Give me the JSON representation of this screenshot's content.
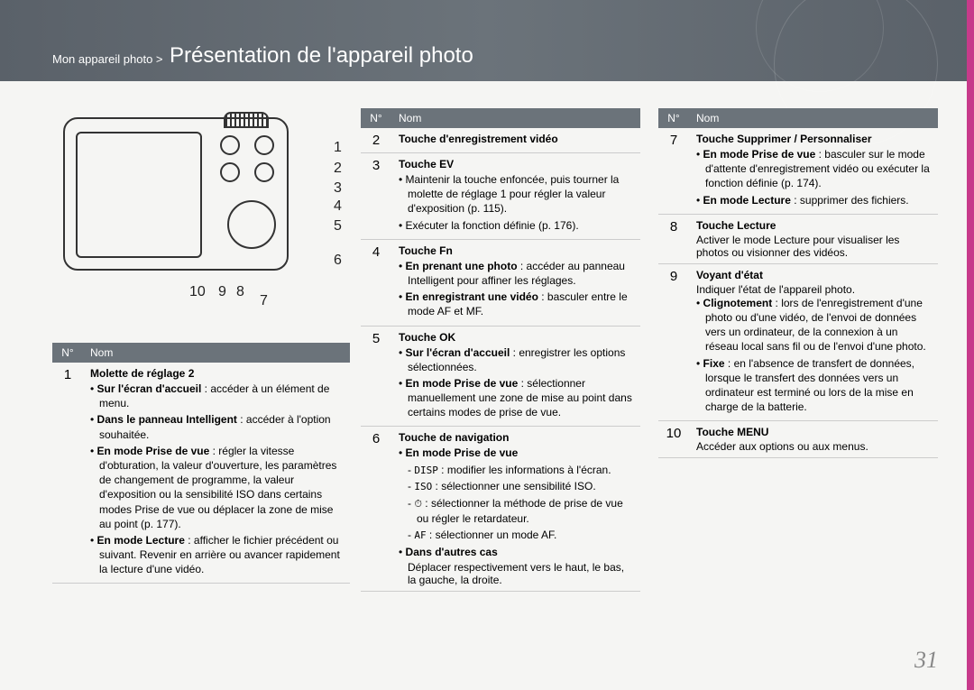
{
  "breadcrumb": "Mon appareil photo >",
  "title": "Présentation de l'appareil photo",
  "page_number": "31",
  "callouts": [
    "1",
    "2",
    "3",
    "4",
    "5",
    "6",
    "7",
    "8",
    "9",
    "10"
  ],
  "table_headers": {
    "num": "N°",
    "name": "Nom"
  },
  "col1": [
    {
      "num": "1",
      "title": "Molette de réglage 2",
      "items": [
        {
          "b": "Sur l'écran d'accueil",
          "t": " : accéder à un élément de menu."
        },
        {
          "b": "Dans le panneau Intelligent",
          "t": " : accéder à l'option souhaitée."
        },
        {
          "b": "En mode Prise de vue",
          "t": " : régler la vitesse d'obturation, la valeur d'ouverture, les paramètres de changement de programme, la valeur d'exposition ou la sensibilité ISO dans certains modes Prise de vue ou déplacer la zone de mise au point (p. 177)."
        },
        {
          "b": "En mode Lecture",
          "t": " : afficher le fichier précédent ou suivant. Revenir en arrière ou avancer rapidement la lecture d'une vidéo."
        }
      ]
    }
  ],
  "col2": [
    {
      "num": "2",
      "title": "Touche d'enregistrement vidéo"
    },
    {
      "num": "3",
      "title": "Touche EV",
      "items": [
        {
          "t": "Maintenir la touche enfoncée, puis tourner la molette de réglage 1 pour régler la valeur d'exposition (p. 115)."
        },
        {
          "t": "Exécuter la fonction définie (p. 176)."
        }
      ]
    },
    {
      "num": "4",
      "title": "Touche Fn",
      "items": [
        {
          "b": "En prenant une photo",
          "t": " : accéder au panneau Intelligent pour affiner les réglages."
        },
        {
          "b": "En enregistrant une vidéo",
          "t": " : basculer entre le mode AF et MF."
        }
      ]
    },
    {
      "num": "5",
      "title": "Touche OK",
      "items": [
        {
          "b": "Sur l'écran d'accueil",
          "t": " : enregistrer les options sélectionnées."
        },
        {
          "b": "En mode Prise de vue",
          "t": " : sélectionner manuellement une zone de mise au point dans certains modes de prise de vue."
        }
      ]
    },
    {
      "num": "6",
      "title": "Touche de navigation",
      "items": [
        {
          "b": "En mode Prise de vue"
        }
      ],
      "subs": [
        {
          "sc": "DISP",
          "t": " : modifier les informations à l'écran."
        },
        {
          "sc": "ISO",
          "t": " : sélectionner une sensibilité ISO."
        },
        {
          "sc": "⏱",
          "t": " : sélectionner la méthode de prise de vue ou régler le retardateur."
        },
        {
          "sc": "AF",
          "t": " : sélectionner un mode AF."
        }
      ],
      "after": {
        "b": "Dans d'autres cas",
        "t": "Déplacer respectivement vers le haut, le bas, la gauche, la droite."
      }
    }
  ],
  "col3": [
    {
      "num": "7",
      "title": "Touche Supprimer / Personnaliser",
      "items": [
        {
          "b": "En mode Prise de vue",
          "t": " : basculer sur le mode d'attente d'enregistrement vidéo ou exécuter la fonction définie (p. 174)."
        },
        {
          "b": "En mode Lecture",
          "t": " : supprimer des fichiers."
        }
      ]
    },
    {
      "num": "8",
      "title": "Touche Lecture",
      "plain": "Activer le mode Lecture pour visualiser les photos ou visionner des vidéos."
    },
    {
      "num": "9",
      "title": "Voyant d'état",
      "plain": "Indiquer l'état de l'appareil photo.",
      "items": [
        {
          "b": "Clignotement",
          "t": " : lors de l'enregistrement d'une photo ou d'une vidéo, de l'envoi de données vers un ordinateur, de la connexion à un réseau local sans fil ou de l'envoi d'une photo."
        },
        {
          "b": "Fixe",
          "t": " : en l'absence de transfert de données, lorsque le transfert des données vers un ordinateur est terminé ou lors de la mise en charge de la batterie."
        }
      ]
    },
    {
      "num": "10",
      "title": "Touche MENU",
      "plain": "Accéder aux options ou aux menus."
    }
  ]
}
